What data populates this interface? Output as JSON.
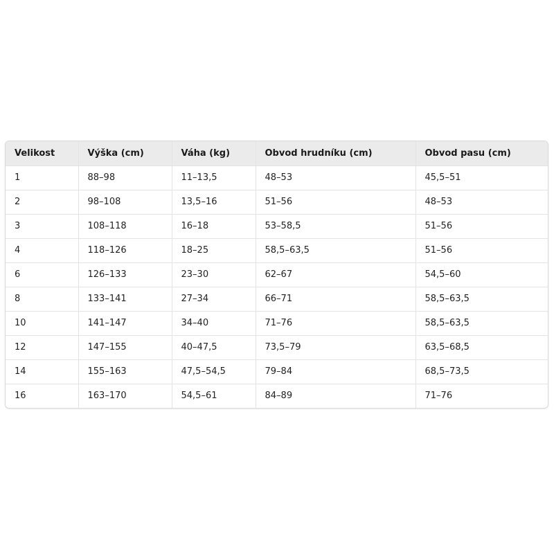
{
  "table": {
    "headers": [
      "Velikost",
      "Výška (cm)",
      "Váha (kg)",
      "Obvod hrudníku (cm)",
      "Obvod pasu (cm)"
    ],
    "rows": [
      [
        "1",
        "88–98",
        "11–13,5",
        "48–53",
        "45,5–51"
      ],
      [
        "2",
        "98–108",
        "13,5–16",
        "51–56",
        "48–53"
      ],
      [
        "3",
        "108–118",
        "16–18",
        "53–58,5",
        "51–56"
      ],
      [
        "4",
        "118–126",
        "18–25",
        "58,5–63,5",
        "51–56"
      ],
      [
        "6",
        "126–133",
        "23–30",
        "62–67",
        "54,5–60"
      ],
      [
        "8",
        "133–141",
        "27–34",
        "66–71",
        "58,5–63,5"
      ],
      [
        "10",
        "141–147",
        "34–40",
        "71–76",
        "58,5–63,5"
      ],
      [
        "12",
        "147–155",
        "40–47,5",
        "73,5–79",
        "63,5–68,5"
      ],
      [
        "14",
        "155–163",
        "47,5–54,5",
        "79–84",
        "68,5–73,5"
      ],
      [
        "16",
        "163–170",
        "54,5–61",
        "84–89",
        "71–76"
      ]
    ]
  }
}
